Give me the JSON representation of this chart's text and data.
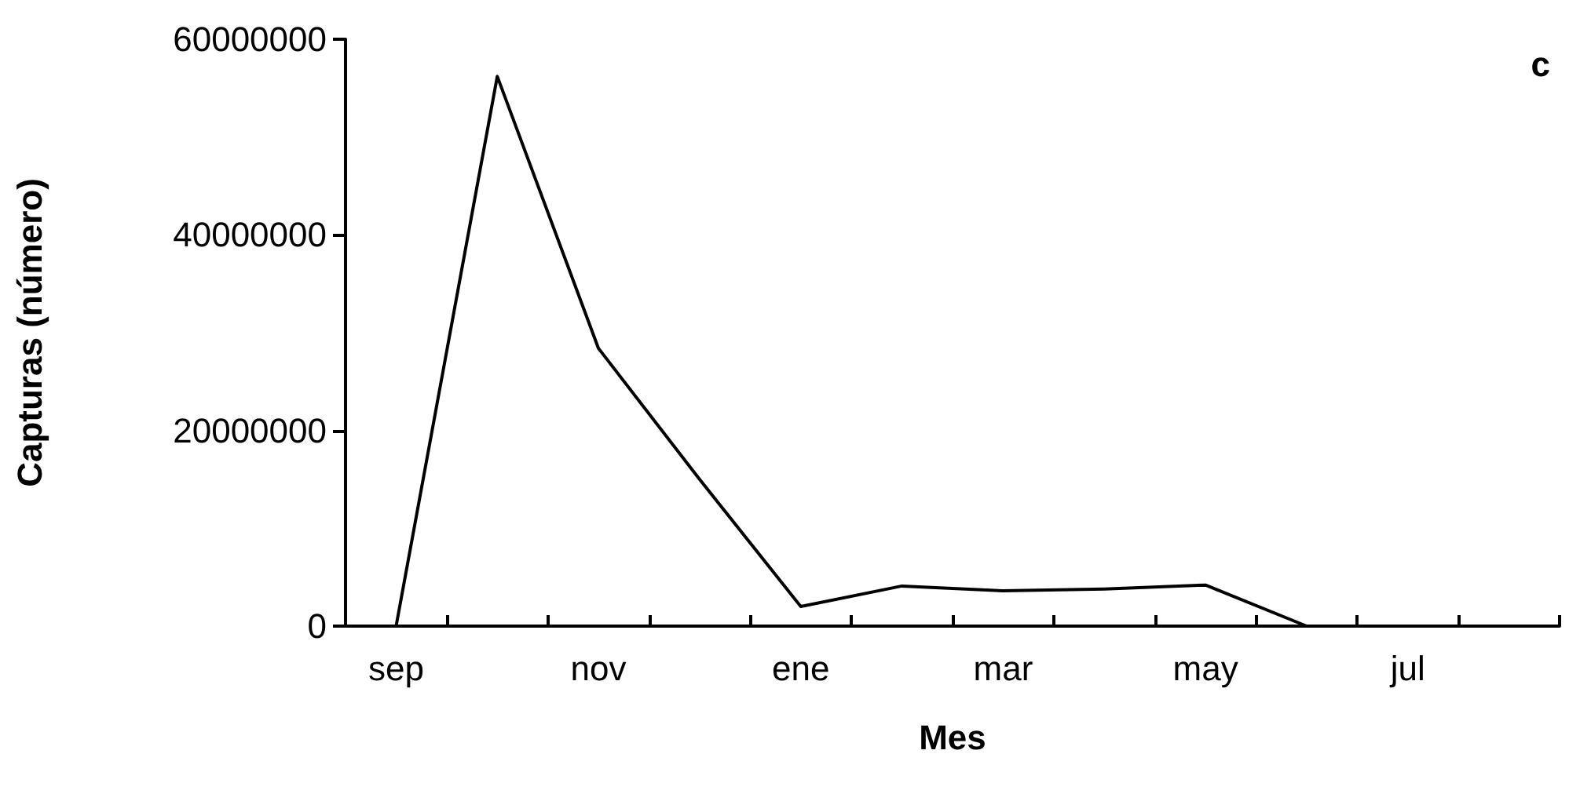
{
  "chart_data": {
    "type": "line",
    "xlabel": "Mes",
    "ylabel": "Capturas (número)",
    "annotations": [
      "c"
    ],
    "categories": [
      "sep",
      null,
      "nov",
      null,
      "ene",
      null,
      "mar",
      null,
      "may",
      null,
      "jul",
      null
    ],
    "series": [
      {
        "color": "#000000",
        "values": [
          0,
          56200000,
          28400000,
          15000000,
          2000000,
          4100000,
          3600000,
          3800000,
          4200000,
          0,
          0,
          0
        ]
      }
    ],
    "ylim": [
      0,
      60000000
    ],
    "yticks": [
      0,
      20000000,
      40000000,
      60000000
    ],
    "grid": false,
    "marker": "none",
    "line_style": "solid"
  }
}
